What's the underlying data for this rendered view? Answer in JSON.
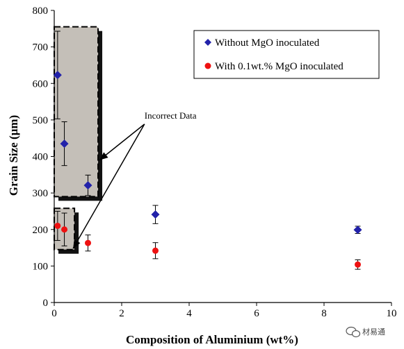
{
  "chart_data": {
    "type": "scatter",
    "xlabel": "Composition of Aluminium (wt%)",
    "ylabel": "Grain Size (µm)",
    "xlim": [
      0,
      10
    ],
    "ylim": [
      0,
      800
    ],
    "x_ticks": [
      0,
      2,
      4,
      6,
      8,
      10
    ],
    "y_ticks": [
      0,
      100,
      200,
      300,
      400,
      500,
      600,
      700,
      800
    ],
    "grid": false,
    "legend_position": "top-right",
    "series": [
      {
        "name": "Without MgO inoculated",
        "marker": "diamond",
        "color": "#2222aa",
        "points": [
          {
            "x": 0.1,
            "y": 623,
            "err": 120
          },
          {
            "x": 0.3,
            "y": 435,
            "err": 60
          },
          {
            "x": 1.0,
            "y": 321,
            "err": 28
          },
          {
            "x": 3.0,
            "y": 241,
            "err": 25
          },
          {
            "x": 9.0,
            "y": 199,
            "err": 10
          }
        ]
      },
      {
        "name": "With 0.1wt.% MgO inoculated",
        "marker": "circle",
        "color": "#ee1111",
        "points": [
          {
            "x": 0.1,
            "y": 210,
            "err": 40
          },
          {
            "x": 0.3,
            "y": 200,
            "err": 45
          },
          {
            "x": 1.0,
            "y": 163,
            "err": 22
          },
          {
            "x": 3.0,
            "y": 142,
            "err": 22
          },
          {
            "x": 9.0,
            "y": 104,
            "err": 13
          }
        ]
      }
    ],
    "annotation": {
      "text": "Incorrect Data",
      "boxes": [
        {
          "x_range": [
            0,
            1.3
          ],
          "y_range": [
            290,
            755
          ]
        },
        {
          "x_range": [
            0,
            0.6
          ],
          "y_range": [
            145,
            258
          ]
        }
      ],
      "label_at": {
        "x": 2.8,
        "y": 500
      }
    }
  },
  "watermark": {
    "icon": "wechat-icon",
    "text": "材易通"
  }
}
